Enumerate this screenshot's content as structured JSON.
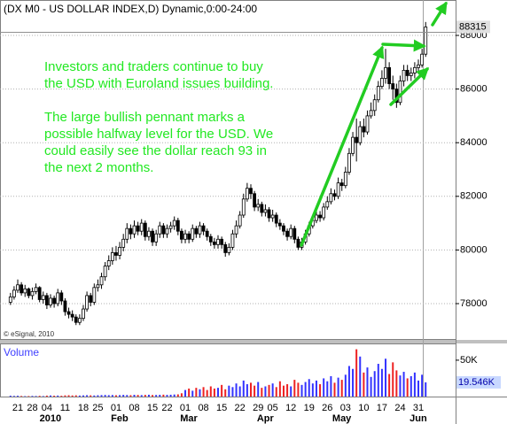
{
  "chart_data": {
    "type": "candlestick",
    "title": "(DX M0 - US DOLLAR INDEX,D) Dynamic,0:00-24:00",
    "copyright": "© eSignal, 2010",
    "annotations": [
      "Investors and traders continue to buy",
      "the USD with Euroland issues building.",
      "The large bullish pennant marks a",
      "possible halfway level for the USD. We",
      "could easily see the dollar reach 93 in",
      "the next 2 months."
    ],
    "categories": [
      null,
      null,
      "21",
      null,
      null,
      null,
      "28",
      null,
      null,
      null,
      "04",
      null,
      null,
      null,
      null,
      "11",
      null,
      null,
      null,
      null,
      "18",
      null,
      null,
      null,
      "25",
      null,
      null,
      null,
      null,
      "01",
      null,
      null,
      null,
      null,
      "08",
      null,
      null,
      null,
      null,
      "15",
      null,
      null,
      null,
      "22",
      null,
      null,
      null,
      null,
      "01",
      null,
      null,
      null,
      null,
      "08",
      null,
      null,
      null,
      null,
      "15",
      null,
      null,
      null,
      null,
      "22",
      null,
      null,
      null,
      null,
      "29",
      null,
      null,
      null,
      "05",
      null,
      null,
      null,
      null,
      "12",
      null,
      null,
      null,
      null,
      "19",
      null,
      null,
      null,
      null,
      "26",
      null,
      null,
      null,
      null,
      "03",
      null,
      null,
      null,
      null,
      "10",
      null,
      null,
      null,
      null,
      "17",
      null,
      null,
      null,
      null,
      "24",
      null,
      null,
      null,
      null,
      "31",
      null,
      null
    ],
    "months": [
      null,
      null,
      null,
      null,
      null,
      null,
      null,
      null,
      null,
      null,
      "2010",
      null,
      null,
      null,
      null,
      null,
      null,
      null,
      null,
      null,
      null,
      null,
      null,
      null,
      null,
      null,
      null,
      null,
      null,
      "Feb",
      null,
      null,
      null,
      null,
      null,
      null,
      null,
      null,
      null,
      null,
      null,
      null,
      null,
      null,
      null,
      null,
      null,
      null,
      "Mar",
      null,
      null,
      null,
      null,
      null,
      null,
      null,
      null,
      null,
      null,
      null,
      null,
      null,
      null,
      null,
      null,
      null,
      null,
      null,
      null,
      "Apr",
      null,
      null,
      null,
      null,
      null,
      null,
      null,
      null,
      null,
      null,
      null,
      null,
      null,
      null,
      null,
      null,
      null,
      null,
      null,
      null,
      "May",
      null,
      null,
      null,
      null,
      null,
      null,
      null,
      null,
      null,
      null,
      null,
      null,
      null,
      null,
      null,
      null,
      null,
      null,
      null,
      null,
      "Jun",
      null
    ],
    "open": [
      78050,
      78250,
      78500,
      78700,
      78400,
      78550,
      78300,
      78450,
      78600,
      78150,
      78300,
      77950,
      78200,
      78000,
      78400,
      78100,
      77700,
      77600,
      77500,
      77300,
      77450,
      77800,
      78300,
      78050,
      78600,
      78700,
      79000,
      79400,
      79600,
      79900,
      79800,
      80100,
      80400,
      80800,
      80600,
      80900,
      80700,
      81000,
      80500,
      80700,
      80300,
      80600,
      80900,
      80600,
      80800,
      80900,
      81100,
      80700,
      80400,
      80600,
      80400,
      80800,
      80600,
      80900,
      80700,
      80500,
      80300,
      80200,
      80400,
      80200,
      79900,
      80100,
      80600,
      80900,
      81300,
      81900,
      82300,
      82100,
      81600,
      81700,
      81400,
      81500,
      81200,
      81300,
      81000,
      80900,
      80700,
      80500,
      80800,
      80400,
      80100,
      80300,
      80600,
      80900,
      81100,
      81300,
      81200,
      81600,
      81800,
      82100,
      82000,
      82500,
      82400,
      82900,
      83600,
      84200,
      84000,
      84600,
      84400,
      85000,
      85200,
      85600,
      86100,
      86400,
      86800,
      86200,
      86000,
      85500,
      86300,
      86700,
      86500,
      86600,
      86800,
      86900,
      87300
    ],
    "high": [
      78400,
      78650,
      78900,
      78800,
      78700,
      78600,
      78600,
      78750,
      78650,
      78450,
      78400,
      78350,
      78300,
      78550,
      78500,
      78200,
      77850,
      77750,
      77600,
      77600,
      77950,
      78450,
      78400,
      78750,
      78900,
      79150,
      79550,
      79800,
      80100,
      80150,
      80300,
      80600,
      81000,
      80950,
      81100,
      81050,
      81150,
      81100,
      80850,
      80800,
      80750,
      81050,
      81000,
      80950,
      81050,
      81250,
      81200,
      80800,
      80750,
      80700,
      80950,
      80900,
      81050,
      81000,
      80800,
      80600,
      80450,
      80550,
      80500,
      80300,
      80250,
      80750,
      81100,
      81450,
      82100,
      82500,
      82450,
      82200,
      81900,
      81800,
      81700,
      81600,
      81500,
      81400,
      81150,
      81000,
      80800,
      80950,
      80900,
      80500,
      80450,
      80750,
      81050,
      81300,
      81500,
      81450,
      81750,
      82000,
      82300,
      82250,
      82700,
      82650,
      83100,
      83800,
      84400,
      84900,
      84800,
      84900,
      85200,
      85500,
      85800,
      86300,
      86700,
      87500,
      87000,
      86500,
      86200,
      86500,
      86900,
      86900,
      86800,
      87000,
      87100,
      87500,
      88500
    ],
    "low": [
      77950,
      78150,
      78400,
      78300,
      78250,
      78200,
      78150,
      78350,
      78050,
      78000,
      77800,
      77850,
      77850,
      77900,
      77950,
      77550,
      77450,
      77350,
      77200,
      77200,
      77350,
      77700,
      77900,
      77950,
      78450,
      78550,
      78850,
      79250,
      79450,
      79600,
      79650,
      79950,
      80250,
      80400,
      80450,
      80550,
      80550,
      80350,
      80350,
      80150,
      80150,
      80450,
      80450,
      80450,
      80650,
      80750,
      80550,
      80250,
      80250,
      80250,
      80300,
      80450,
      80450,
      80550,
      80350,
      80150,
      80050,
      80050,
      80050,
      79750,
      79800,
      80000,
      80450,
      80800,
      81200,
      81800,
      81900,
      81450,
      81450,
      81250,
      81250,
      81050,
      81050,
      80850,
      80750,
      80550,
      80350,
      80400,
      80250,
      80000,
      80000,
      80200,
      80500,
      80800,
      81000,
      81050,
      81100,
      81500,
      81700,
      81850,
      81900,
      82200,
      82300,
      82800,
      83500,
      83300,
      83900,
      84200,
      84300,
      84900,
      85000,
      85500,
      86000,
      86200,
      86000,
      85600,
      85300,
      85400,
      86100,
      86300,
      86300,
      86400,
      86600,
      86800,
      87200
    ],
    "close": [
      78250,
      78500,
      78700,
      78400,
      78550,
      78300,
      78450,
      78600,
      78150,
      78300,
      77950,
      78200,
      78000,
      78400,
      78100,
      77700,
      77600,
      77500,
      77300,
      77450,
      77800,
      78300,
      78050,
      78600,
      78700,
      79000,
      79400,
      79600,
      79900,
      79800,
      80100,
      80400,
      80800,
      80600,
      80900,
      80700,
      81000,
      80500,
      80700,
      80300,
      80600,
      80900,
      80600,
      80800,
      80900,
      81100,
      80700,
      80400,
      80600,
      80400,
      80800,
      80600,
      80900,
      80700,
      80500,
      80300,
      80200,
      80400,
      80200,
      79900,
      80100,
      80600,
      80900,
      81300,
      81900,
      82300,
      82100,
      81600,
      81700,
      81400,
      81500,
      81200,
      81300,
      81000,
      80900,
      80700,
      80500,
      80800,
      80400,
      80100,
      80300,
      80600,
      80900,
      81100,
      81300,
      81200,
      81600,
      81800,
      82100,
      82000,
      82500,
      82400,
      82900,
      83600,
      84200,
      84000,
      84600,
      84400,
      85000,
      85200,
      85600,
      86100,
      86400,
      86800,
      86200,
      86000,
      85500,
      86300,
      86700,
      86500,
      86600,
      86800,
      86900,
      87300,
      88315
    ],
    "up_color": "#ffffff",
    "down_color": "#000000",
    "ylim": [
      76680,
      89320
    ],
    "yticks": [
      78000,
      80000,
      82000,
      84000,
      86000,
      88000
    ],
    "grid": true,
    "volume": {
      "title": "Volume",
      "values": [
        1200,
        900,
        1100,
        800,
        600,
        700,
        900,
        800,
        1000,
        700,
        1300,
        1500,
        1200,
        1400,
        1100,
        1600,
        1800,
        1500,
        1700,
        1400,
        1600,
        1900,
        1700,
        1500,
        1800,
        2000,
        2200,
        1900,
        2100,
        1800,
        2000,
        2300,
        2100,
        1900,
        2400,
        2200,
        2000,
        2300,
        2500,
        2100,
        2200,
        2400,
        2600,
        2300,
        2500,
        2800,
        3000,
        4500,
        9000,
        11000,
        8000,
        12000,
        10000,
        13000,
        9000,
        14000,
        11000,
        12000,
        16000,
        10000,
        15000,
        13000,
        18000,
        14000,
        22000,
        17000,
        19000,
        15000,
        20000,
        12000,
        14000,
        16000,
        18000,
        13000,
        21000,
        15000,
        17000,
        14000,
        23000,
        19000,
        16000,
        20000,
        24000,
        18000,
        22000,
        17000,
        25000,
        21000,
        28000,
        19000,
        26000,
        23000,
        30000,
        42000,
        38000,
        65000,
        55000,
        33000,
        40000,
        27000,
        35000,
        45000,
        38000,
        52000,
        31000,
        47000,
        36000,
        29000,
        34000,
        25000,
        28000,
        33000,
        22000,
        30000,
        19546
      ],
      "value_labels": [
        null,
        null,
        null,
        null,
        null,
        null,
        null,
        null,
        null,
        null,
        null,
        null,
        null,
        null,
        null,
        null,
        null,
        null,
        null,
        null,
        null,
        null,
        null,
        null,
        null,
        null,
        null,
        null,
        null,
        null,
        null,
        null,
        null,
        null,
        null,
        null,
        null,
        null,
        null,
        null,
        null,
        null,
        null,
        null,
        null,
        null,
        null,
        null,
        null,
        null,
        null,
        null,
        null,
        null,
        null,
        null,
        null,
        null,
        null,
        null,
        null,
        null,
        null,
        null,
        null,
        null,
        null,
        null,
        null,
        null,
        null,
        null,
        null,
        null,
        null,
        null,
        null,
        null,
        null,
        null,
        null,
        null,
        null,
        null,
        null,
        null,
        null,
        null,
        null,
        null,
        null,
        null,
        null,
        null,
        null,
        null,
        null,
        null,
        null,
        null,
        null,
        null,
        null,
        null,
        null,
        null,
        null,
        null,
        null,
        null,
        null,
        null,
        null,
        null,
        "19.546K"
      ],
      "ylim": [
        0,
        73000
      ],
      "yticks": [
        {
          "value": 50000,
          "label": "50K"
        }
      ],
      "up_color": "#3333ff",
      "down_color": "#ee2222"
    }
  }
}
